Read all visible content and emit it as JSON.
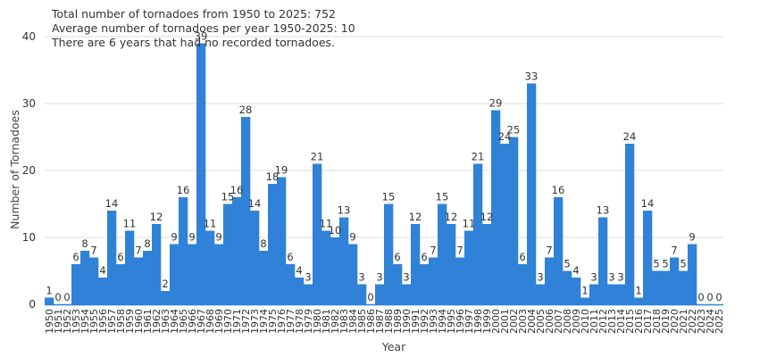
{
  "chart_data": {
    "type": "bar",
    "annotations": [
      "Total number of tornadoes from 1950 to 2025: 752",
      "Average number of tornadoes per year 1950-2025: 10",
      "There are 6 years that had no recorded tornadoes."
    ],
    "xlabel": "Year",
    "ylabel": "Number of Tornadoes",
    "ylim": [
      0,
      40
    ],
    "yticks": [
      0,
      10,
      20,
      30,
      40
    ],
    "grid": true,
    "legend": "none",
    "colors": {
      "bar": "#2f82d8",
      "grid": "#dddddd",
      "axis": "#2f82d8"
    },
    "categories": [
      "1950",
      "1951",
      "1952",
      "1953",
      "1954",
      "1955",
      "1956",
      "1957",
      "1958",
      "1959",
      "1960",
      "1961",
      "1962",
      "1963",
      "1964",
      "1965",
      "1966",
      "1967",
      "1968",
      "1969",
      "1970",
      "1971",
      "1972",
      "1973",
      "1974",
      "1975",
      "1976",
      "1977",
      "1978",
      "1979",
      "1980",
      "1981",
      "1982",
      "1983",
      "1984",
      "1985",
      "1986",
      "1987",
      "1988",
      "1989",
      "1990",
      "1991",
      "1992",
      "1993",
      "1994",
      "1995",
      "1996",
      "1997",
      "1998",
      "1999",
      "2000",
      "2001",
      "2002",
      "2003",
      "2004",
      "2005",
      "2006",
      "2007",
      "2008",
      "2009",
      "2010",
      "2011",
      "2012",
      "2013",
      "2014",
      "2015",
      "2016",
      "2017",
      "2018",
      "2019",
      "2020",
      "2021",
      "2022",
      "2023",
      "2024",
      "2025"
    ],
    "values": [
      1,
      0,
      0,
      6,
      8,
      7,
      4,
      14,
      6,
      11,
      7,
      8,
      12,
      2,
      9,
      16,
      9,
      39,
      11,
      9,
      15,
      16,
      28,
      14,
      8,
      18,
      19,
      6,
      4,
      3,
      21,
      11,
      10,
      13,
      9,
      3,
      0,
      3,
      15,
      6,
      3,
      12,
      6,
      7,
      15,
      12,
      7,
      11,
      21,
      12,
      29,
      24,
      25,
      6,
      33,
      3,
      7,
      16,
      5,
      4,
      1,
      3,
      13,
      3,
      3,
      24,
      1,
      14,
      5,
      5,
      7,
      5,
      9,
      0,
      0,
      0
    ]
  }
}
